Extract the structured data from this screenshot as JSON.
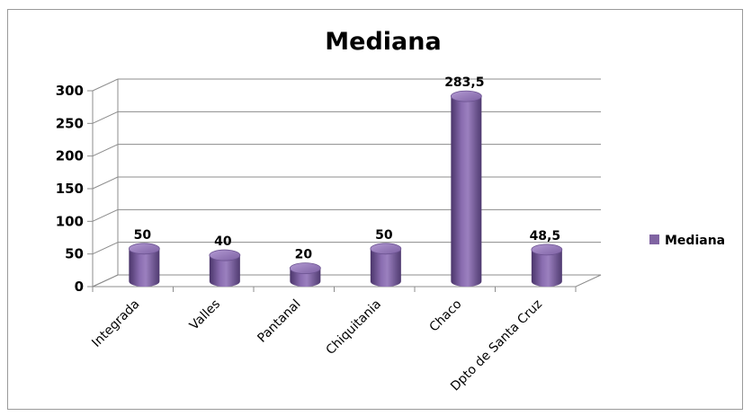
{
  "chart_data": {
    "type": "bar",
    "title": "Mediana",
    "categories": [
      "Integrada",
      "Valles",
      "Pantanal",
      "Chiquitania",
      "Chaco",
      "Dpto de Santa Cruz"
    ],
    "series": [
      {
        "name": "Mediana",
        "values": [
          50,
          40,
          20,
          50,
          283.5,
          48.5
        ],
        "labels": [
          "50",
          "40",
          "20",
          "50",
          "283,5",
          "48,5"
        ],
        "color": "#8064a2"
      }
    ],
    "yticks": [
      "0",
      "50",
      "100",
      "150",
      "200",
      "250",
      "300"
    ],
    "ylim": [
      0,
      300
    ],
    "grid": true,
    "legend": "right",
    "shape": "cylinder-3d"
  }
}
